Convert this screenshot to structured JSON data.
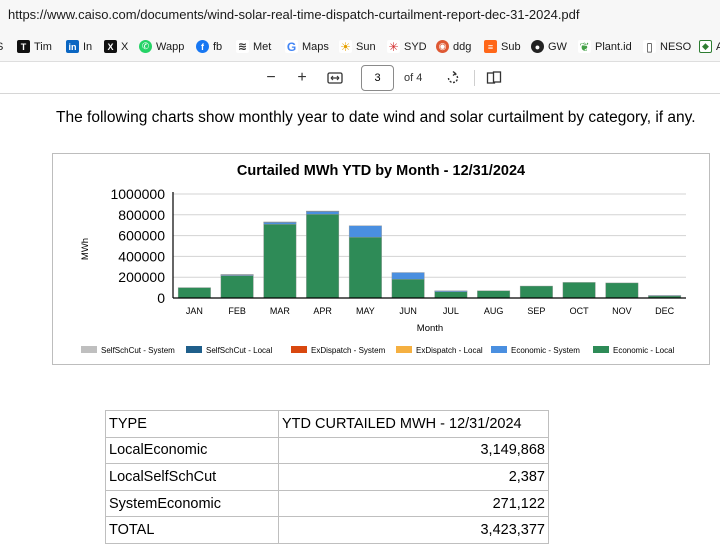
{
  "browser": {
    "url": "https://www.caiso.com/documents/wind-solar-real-time-dispatch-curtailment-report-dec-31-2024.pdf"
  },
  "bookmarks": [
    {
      "label": "S",
      "icon": "bookmark-icon"
    },
    {
      "label": "Tim",
      "icon": "t-logo-icon"
    },
    {
      "label": "In",
      "icon": "linkedin-icon"
    },
    {
      "label": "X",
      "icon": "x-logo-icon"
    },
    {
      "label": "Wapp",
      "icon": "whatsapp-icon"
    },
    {
      "label": "fb",
      "icon": "facebook-icon"
    },
    {
      "label": "Met",
      "icon": "met-icon"
    },
    {
      "label": "Maps",
      "icon": "google-icon"
    },
    {
      "label": "Sun",
      "icon": "sun-icon"
    },
    {
      "label": "SYD",
      "icon": "syd-icon"
    },
    {
      "label": "ddg",
      "icon": "duckduckgo-icon"
    },
    {
      "label": "Sub",
      "icon": "substack-icon"
    },
    {
      "label": "GW",
      "icon": "gw-icon"
    },
    {
      "label": "Plant.id",
      "icon": "plant-icon"
    },
    {
      "label": "NESO",
      "icon": "bookmark-icon"
    },
    {
      "label": "A",
      "icon": "a-icon"
    }
  ],
  "pdf_toolbar": {
    "page_value": "3",
    "page_count": "of 4"
  },
  "document": {
    "intro": "The following charts show monthly year to date wind and solar curtailment by category, if any."
  },
  "chart_data": {
    "type": "bar",
    "stacked": true,
    "title": "Curtailed MWh YTD by Month - 12/31/2024",
    "xlabel": "Month",
    "ylabel": "MWh",
    "ylim": [
      0,
      1000000
    ],
    "yticks": [
      "1000000",
      "800000",
      "600000",
      "400000",
      "200000",
      "0"
    ],
    "grid": true,
    "legend_position": "bottom",
    "categories": [
      "JAN",
      "FEB",
      "MAR",
      "APR",
      "MAY",
      "JUN",
      "JUL",
      "AUG",
      "SEP",
      "OCT",
      "NOV",
      "DEC"
    ],
    "series": [
      {
        "name": "SelfSchCut - System",
        "color": "#bfbfbf",
        "values": [
          0,
          0,
          0,
          0,
          0,
          0,
          0,
          0,
          0,
          0,
          0,
          0
        ]
      },
      {
        "name": "SelfSchCut - Local",
        "color": "#1f5f8b",
        "values": [
          0,
          1000,
          1000,
          1000,
          0,
          0,
          0,
          0,
          0,
          0,
          0,
          0
        ]
      },
      {
        "name": "ExDispatch - System",
        "color": "#d9480f",
        "values": [
          0,
          0,
          0,
          0,
          0,
          0,
          0,
          0,
          0,
          0,
          0,
          0
        ]
      },
      {
        "name": "ExDispatch - Local",
        "color": "#f5b041",
        "values": [
          0,
          0,
          0,
          0,
          0,
          0,
          0,
          0,
          0,
          0,
          0,
          0
        ]
      },
      {
        "name": "Economic - System",
        "color": "#4a8fe0",
        "values": [
          0,
          10000,
          20000,
          30000,
          110000,
          65000,
          10000,
          0,
          0,
          0,
          0,
          5000
        ]
      },
      {
        "name": "Economic - Local",
        "color": "#2e8b57",
        "values": [
          100000,
          215000,
          710000,
          805000,
          585000,
          180000,
          60000,
          70000,
          115000,
          150000,
          145000,
          20000
        ]
      }
    ]
  },
  "table": {
    "header": [
      "TYPE",
      "YTD CURTAILED MWH - 12/31/2024"
    ],
    "rows": [
      [
        "LocalEconomic",
        "3,149,868"
      ],
      [
        "LocalSelfSchCut",
        "2,387"
      ],
      [
        "SystemEconomic",
        "271,122"
      ],
      [
        "TOTAL",
        "3,423,377"
      ]
    ]
  }
}
